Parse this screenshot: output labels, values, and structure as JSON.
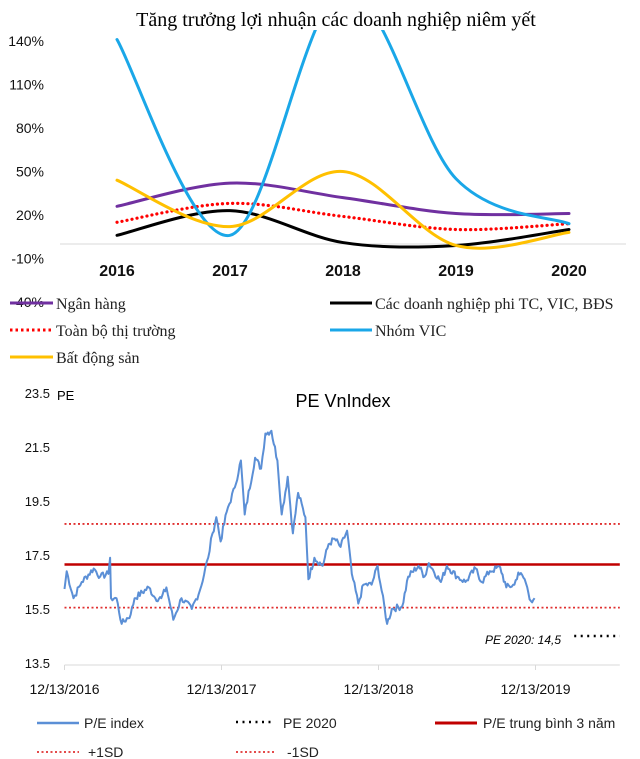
{
  "chart_data": [
    {
      "type": "line",
      "title": "Tăng trưởng lợi nhuận các doanh nghiệp niêm yết",
      "categories": [
        "2016",
        "2017",
        "2018",
        "2019",
        "2020"
      ],
      "y_tick_labels": [
        "140%",
        "110%",
        "80%",
        "50%",
        "20%",
        "-10%",
        "-40%"
      ],
      "y_ticks": [
        140,
        110,
        80,
        50,
        20,
        -10,
        -40
      ],
      "ylim": [
        -40,
        150
      ],
      "unit": "%",
      "smooth": true,
      "legend_position": "bottom",
      "series": [
        {
          "name": "Ngân hàng",
          "color": "#7030a0",
          "style": "solid",
          "values": [
            26,
            42,
            32,
            21,
            21
          ]
        },
        {
          "name": "Các doanh nghiệp phi TC, VIC, BĐS",
          "color": "#000000",
          "style": "solid",
          "values": [
            6,
            23,
            1,
            -1,
            10
          ]
        },
        {
          "name": "Toàn bộ thị trường",
          "color": "#ff0000",
          "style": "dotted",
          "values": [
            15,
            28,
            19,
            10,
            14
          ]
        },
        {
          "name": "Nhóm VIC",
          "color": "#1aa7e8",
          "style": "solid",
          "values": [
            141,
            6,
            175,
            45,
            14
          ]
        },
        {
          "name": "Bất động sản",
          "color": "#ffc000",
          "style": "solid",
          "values": [
            44,
            12,
            50,
            -1,
            8
          ]
        }
      ]
    },
    {
      "type": "line",
      "title": "PE VnIndex",
      "ylabel": "PE",
      "y_tick_labels": [
        "23.5",
        "21.5",
        "19.5",
        "17.5",
        "15.5",
        "13.5"
      ],
      "y_ticks": [
        23.5,
        21.5,
        19.5,
        17.5,
        15.5,
        13.5
      ],
      "ylim": [
        13.5,
        23.5
      ],
      "x_unit": "days since 12/13/2016",
      "x_tick_labels": [
        "12/13/2016",
        "12/13/2017",
        "12/13/2018",
        "12/13/2019"
      ],
      "x_ticks": [
        0,
        365,
        730,
        1095
      ],
      "xlim": [
        0,
        1291
      ],
      "annotation": "PE 2020: 14,5",
      "legend_position": "bottom",
      "series": [
        {
          "name": "P/E index",
          "color": "#5b8fd6",
          "style": "solid",
          "x": [
            0,
            5,
            21,
            40,
            68,
            83,
            102,
            106,
            108,
            121,
            133,
            154,
            163,
            196,
            211,
            225,
            237,
            253,
            272,
            296,
            315,
            334,
            344,
            353,
            363,
            377,
            396,
            410,
            419,
            443,
            457,
            467,
            481,
            495,
            505,
            519,
            531,
            543,
            560,
            567,
            581,
            600,
            614,
            628,
            642,
            657,
            668,
            683,
            695,
            714,
            728,
            750,
            761,
            785,
            799,
            823,
            837,
            847,
            875,
            889,
            913,
            932,
            956,
            970,
            989,
            1013,
            1027,
            1046,
            1055,
            1070,
            1084,
            1093
          ],
          "y": [
            16.24,
            16.9,
            15.9,
            16.5,
            17.0,
            16.7,
            16.8,
            17.4,
            15.9,
            15.9,
            14.95,
            15.3,
            15.9,
            16.3,
            15.9,
            15.9,
            16.3,
            15.1,
            15.9,
            15.5,
            16.2,
            17.4,
            18.3,
            18.9,
            18.0,
            19.1,
            20.0,
            21.0,
            19.0,
            21.1,
            20.7,
            22.0,
            22.1,
            21.0,
            19.0,
            20.4,
            18.3,
            19.8,
            18.9,
            16.6,
            17.4,
            17.1,
            17.9,
            18.1,
            17.8,
            18.4,
            16.8,
            15.7,
            16.4,
            16.4,
            17.1,
            14.95,
            15.5,
            15.6,
            16.7,
            17.1,
            16.7,
            17.2,
            16.5,
            17.1,
            16.7,
            16.5,
            17.0,
            16.5,
            16.9,
            17.05,
            16.3,
            16.4,
            16.85,
            16.6,
            15.8,
            15.9
          ]
        },
        {
          "name": "PE 2020",
          "color": "#000000",
          "style": "dotted",
          "value": 14.5,
          "x_range": [
            1185,
            1291
          ]
        },
        {
          "name": "P/E trung bình 3 năm",
          "color": "#c00000",
          "style": "solid",
          "value": 17.15
        },
        {
          "name": "+1SD",
          "color": "#e03030",
          "style": "dotted",
          "value": 18.65
        },
        {
          "name": "-1SD",
          "color": "#e03030",
          "style": "dotted",
          "value": 15.55
        }
      ]
    }
  ]
}
